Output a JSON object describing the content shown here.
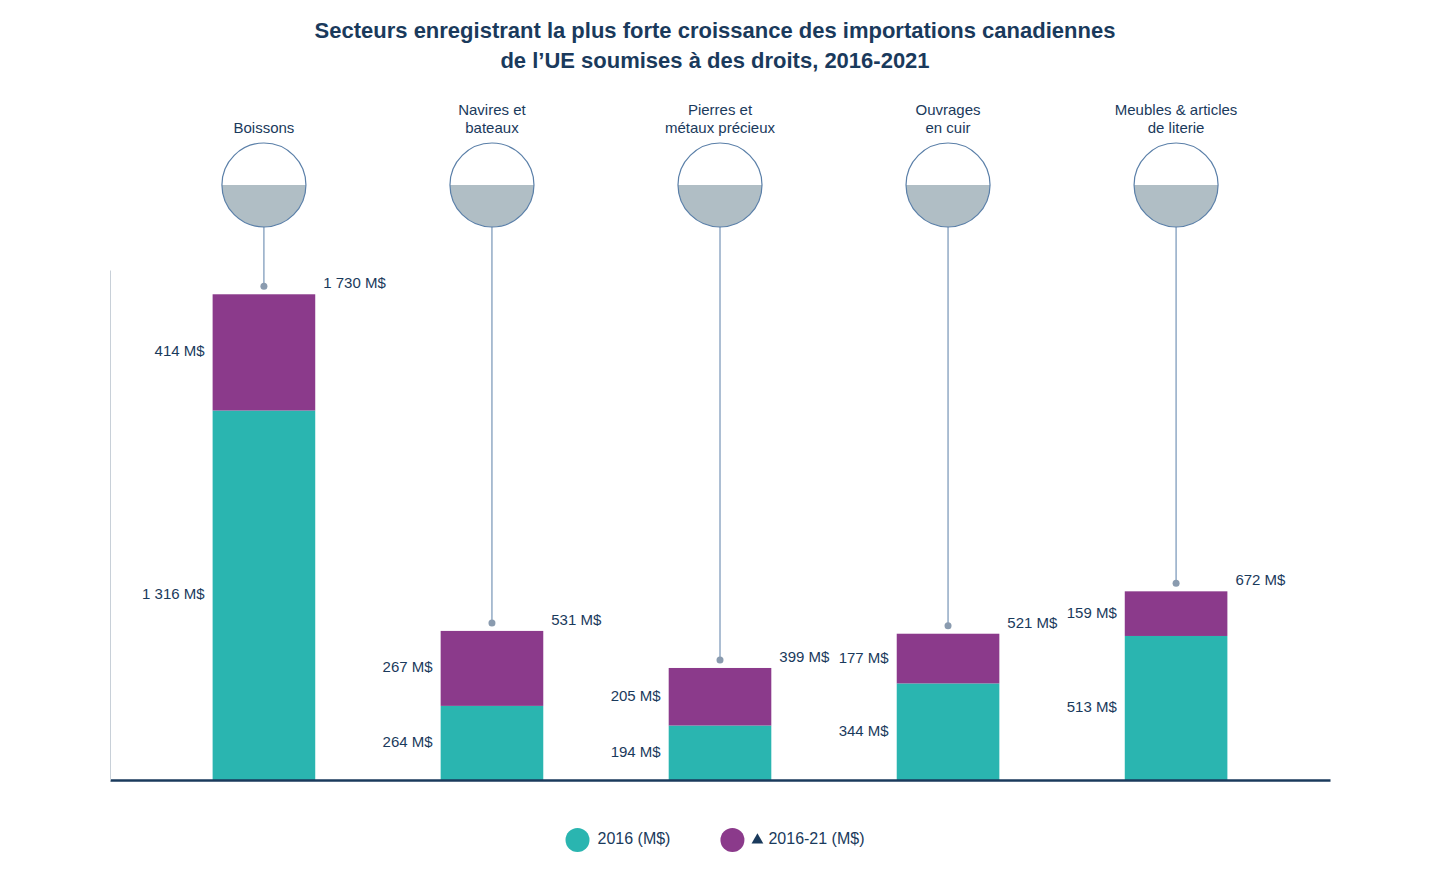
{
  "chart_data": {
    "type": "bar",
    "title": "Secteurs enregistrant la plus forte croissance des importations canadiennes\nde l’UE soumises à des droits, 2016-2021",
    "categories": [
      "Boissons",
      "Navires et\nbateaux",
      "Pierres et\nmétaux précieux",
      "Ouvrages\nen cuir",
      "Meubles & articles\nde literie"
    ],
    "series": [
      {
        "name": "2016 (M$)",
        "color": "#2ab5b0",
        "values": [
          1316,
          264,
          194,
          344,
          513
        ],
        "value_labels": [
          "1 316 M$",
          "264 M$",
          "194 M$",
          "344 M$",
          "513 M$"
        ]
      },
      {
        "name": "2016-21 (M$)",
        "color": "#8b3a8b",
        "values": [
          414,
          267,
          205,
          177,
          159
        ],
        "value_labels": [
          "414 M$",
          "267 M$",
          "205 M$",
          "177 M$",
          "159 M$"
        ]
      }
    ],
    "totals": [
      1730,
      531,
      399,
      521,
      672
    ],
    "total_labels": [
      "1 730 M$",
      "531 M$",
      "399 M$",
      "521 M$",
      "672 M$"
    ],
    "ylim": [
      0,
      1816.5
    ],
    "stacked": true,
    "data_labels": true,
    "tick_labels": false,
    "grid": false,
    "legend": "bottom"
  }
}
